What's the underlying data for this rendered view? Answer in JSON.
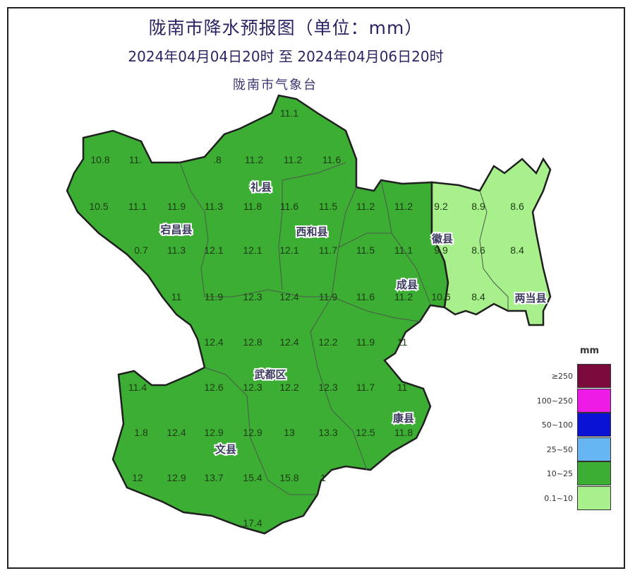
{
  "header": {
    "title": "陇南市降水预报图（单位：mm）",
    "subtitle": "2024年04月04日20时   至   2024年04月06日20时",
    "agency": "陇南市气象台"
  },
  "colors": {
    "dark_green": "#3cae34",
    "light_green": "#a8f08c",
    "border": "#1f1f1f"
  },
  "map": {
    "counties": [
      "礼县",
      "宕昌县",
      "西和县",
      "徽县",
      "成县",
      "两当县",
      "武都区",
      "康县",
      "文县"
    ],
    "grid_rows": [
      [
        "11.1"
      ],
      [
        "10.8",
        "11.",
        ".8",
        "11.2",
        "11.2",
        "11.6"
      ],
      [
        "10.5",
        "11.1",
        "11.9",
        "11.3",
        "11.8",
        "11.6",
        "11.5",
        "11.2",
        "11.2",
        "9.2",
        "8.9",
        "8.6"
      ],
      [
        "0.7",
        "11.3",
        "12.1",
        "12.1",
        "12.1",
        "11.7",
        "11.5",
        "11.1",
        "9.9",
        "8.6",
        "8.4"
      ],
      [
        "11",
        "11.9",
        "12.3",
        "12.4",
        "11.9",
        "11.6",
        "11.2",
        "10.6",
        "8.4"
      ],
      [
        "12.4",
        "12.8",
        "12.4",
        "12.2",
        "11.9",
        "11"
      ],
      [
        "11.4",
        "12.6",
        "12.3",
        "12.2",
        "12.3",
        "11.7",
        "11"
      ],
      [
        "1.8",
        "12.4",
        "12.9",
        "12.9",
        "13",
        "13.3",
        "12.5",
        "11.8"
      ],
      [
        "12",
        "12.9",
        "13.7",
        "15.4",
        "15.8",
        "1"
      ],
      [
        "17.4"
      ]
    ]
  },
  "legend": {
    "unit": "mm",
    "items": [
      {
        "label": "≥250",
        "color": "#7a0b3c"
      },
      {
        "label": "100~250",
        "color": "#ee1be6"
      },
      {
        "label": "50~100",
        "color": "#0a12d6"
      },
      {
        "label": "25~50",
        "color": "#66b6f4"
      },
      {
        "label": "10~25",
        "color": "#3cae34"
      },
      {
        "label": "0.1~10",
        "color": "#a8f08c"
      }
    ]
  }
}
